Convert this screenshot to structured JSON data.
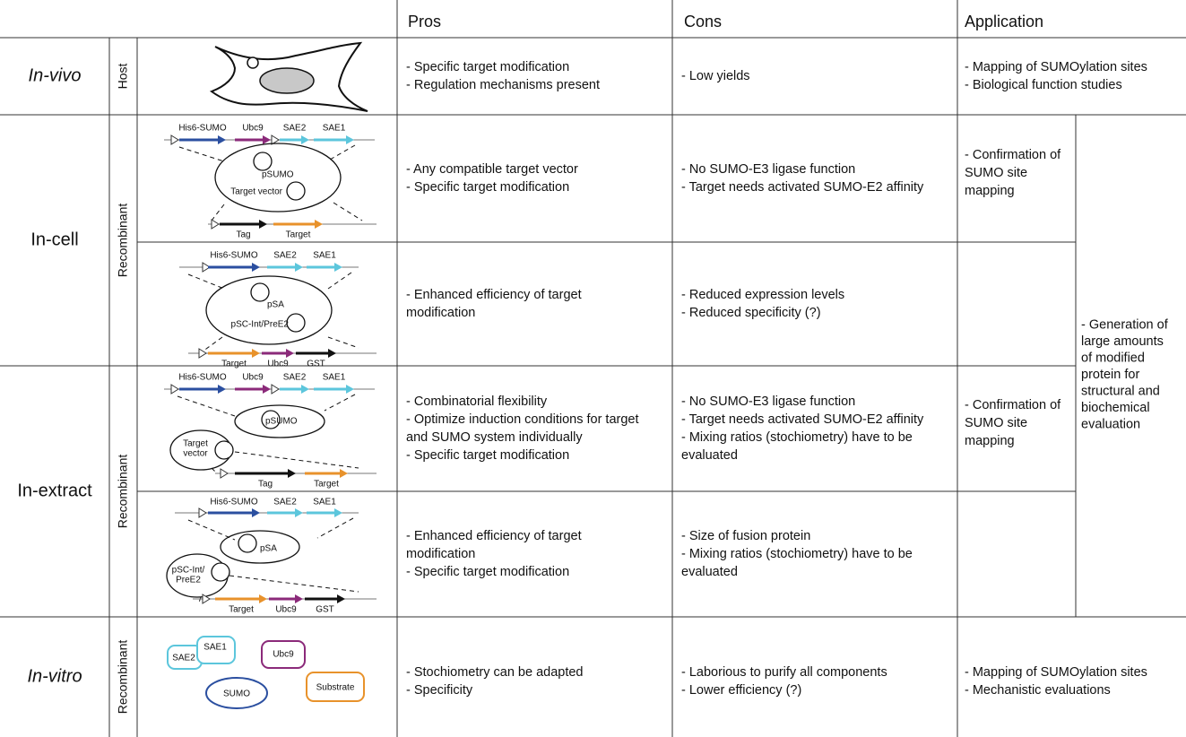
{
  "header": {
    "columns": [
      "Pros",
      "Cons",
      "Application"
    ]
  },
  "rows": [
    {
      "method": "In-vivo",
      "system": "Host",
      "pros": [
        "- Specific target modification",
        "- Regulation mechanisms present"
      ],
      "cons": [
        "- Low yields"
      ],
      "application": [
        "- Mapping of SUMOylation sites",
        "- Biological function studies"
      ]
    },
    {
      "method": "In-cell",
      "system": "Recombinant",
      "variants": [
        {
          "diagram": {
            "genes": [
              "His6-SUMO",
              "Ubc9",
              "SAE2",
              "SAE1"
            ],
            "plasmids": [
              [
                "pSUMO"
              ],
              [
                "Target vector"
              ]
            ],
            "target_genes": [
              "Tag",
              "Target"
            ]
          },
          "pros": [
            "- Any compatible target vector",
            "- Specific target modification"
          ],
          "cons": [
            "- No SUMO-E3 ligase function",
            "- Target needs activated SUMO-E2 affinity"
          ],
          "application": [
            "- Confirmation of",
            "SUMO site",
            "mapping"
          ]
        },
        {
          "diagram": {
            "genes": [
              "His6-SUMO",
              "SAE2",
              "SAE1"
            ],
            "plasmids": [
              [
                "pSA"
              ],
              [
                "pSC-Int/PreE2"
              ]
            ],
            "target_genes": [
              "Target",
              "Ubc9",
              "GST"
            ]
          },
          "pros": [
            "- Enhanced efficiency of target",
            "modification"
          ],
          "cons": [
            "- Reduced expression levels",
            "- Reduced specificity (?)"
          ]
        }
      ]
    },
    {
      "method": "In-extract",
      "system": "Recombinant",
      "variants": [
        {
          "diagram": {
            "genes": [
              "His6-SUMO",
              "Ubc9",
              "SAE2",
              "SAE1"
            ],
            "plasmids": [
              [
                "pSUMO"
              ],
              [
                "Target",
                "vector"
              ]
            ],
            "target_genes": [
              "Tag",
              "Target"
            ]
          },
          "pros": [
            "- Combinatorial flexibility",
            "- Optimize induction conditions for target",
            "and SUMO system individually",
            "- Specific target modification"
          ],
          "cons": [
            "- No SUMO-E3 ligase function",
            "- Target needs activated SUMO-E2 affinity",
            "- Mixing ratios (stochiometry) have to be",
            "evaluated"
          ],
          "application": [
            "- Confirmation of",
            "SUMO site",
            "mapping"
          ]
        },
        {
          "diagram": {
            "genes": [
              "His6-SUMO",
              "SAE2",
              "SAE1"
            ],
            "plasmids": [
              [
                "pSA"
              ],
              [
                "pSC-Int/",
                "PreE2"
              ]
            ],
            "target_genes": [
              "Target",
              "Ubc9",
              "GST"
            ]
          },
          "pros": [
            "- Enhanced efficiency of target",
            "modification",
            "- Specific target modification"
          ],
          "cons": [
            "- Size of fusion protein",
            "- Mixing ratios (stochiometry) have to be",
            "evaluated"
          ]
        }
      ]
    },
    {
      "method": "In-vitro",
      "system": "Recombinant",
      "components": [
        "SAE2",
        "SAE1",
        "Ubc9",
        "SUMO",
        "Substrate"
      ],
      "pros": [
        "- Stochiometry can be adapted",
        "- Specificity"
      ],
      "cons": [
        "- Laborious to purify all components",
        "- Lower efficiency (?)"
      ],
      "application": [
        "- Mapping of SUMOylation sites",
        "- Mechanistic evaluations"
      ]
    }
  ],
  "shared_application": [
    "- Generation of",
    "large amounts",
    "of modified",
    "protein for",
    "structural and",
    "biochemical",
    "evaluation"
  ]
}
